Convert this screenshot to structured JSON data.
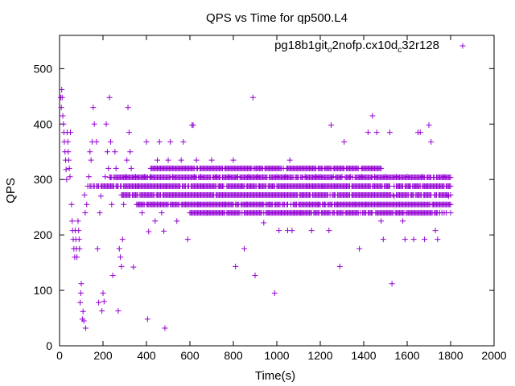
{
  "chart_data": {
    "type": "scatter",
    "title": "QPS vs Time for qp500.L4",
    "xlabel": "Time(s)",
    "ylabel": "QPS",
    "xlim": [
      0,
      2000
    ],
    "ylim": [
      0,
      560
    ],
    "xticks": [
      0,
      200,
      400,
      600,
      800,
      1000,
      1200,
      1400,
      1600,
      1800,
      2000
    ],
    "yticks": [
      0,
      100,
      200,
      300,
      400,
      500
    ],
    "grid": false,
    "legend_position": "top-right",
    "marker": "+",
    "series": [
      {
        "name_main": "pg18b1git",
        "name_sub1": "o",
        "name_mid": "2nofp.cx10d",
        "name_sub2": "c",
        "name_end": "32r128",
        "color": "#9400d3",
        "seed_points": [
          [
            5,
            448
          ],
          [
            8,
            430
          ],
          [
            10,
            462
          ],
          [
            12,
            448
          ],
          [
            15,
            415
          ],
          [
            18,
            400
          ],
          [
            20,
            385
          ],
          [
            22,
            368
          ],
          [
            25,
            350
          ],
          [
            28,
            335
          ],
          [
            30,
            318
          ],
          [
            33,
            300
          ],
          [
            35,
            385
          ],
          [
            38,
            368
          ],
          [
            40,
            350
          ],
          [
            42,
            335
          ],
          [
            45,
            320
          ],
          [
            48,
            305
          ],
          [
            50,
            385
          ],
          [
            55,
            255
          ],
          [
            58,
            225
          ],
          [
            60,
            208
          ],
          [
            63,
            192
          ],
          [
            66,
            175
          ],
          [
            70,
            160
          ],
          [
            72,
            208
          ],
          [
            75,
            192
          ],
          [
            78,
            175
          ],
          [
            80,
            160
          ],
          [
            85,
            225
          ],
          [
            88,
            208
          ],
          [
            90,
            192
          ],
          [
            92,
            175
          ],
          [
            95,
            78
          ],
          [
            98,
            95
          ],
          [
            100,
            112
          ],
          [
            105,
            48
          ],
          [
            108,
            62
          ],
          [
            112,
            45
          ],
          [
            115,
            272
          ],
          [
            118,
            240
          ],
          [
            120,
            32
          ],
          [
            125,
            255
          ],
          [
            130,
            288
          ],
          [
            135,
            305
          ],
          [
            140,
            350
          ],
          [
            145,
            335
          ],
          [
            150,
            368
          ],
          [
            155,
            430
          ],
          [
            160,
            400
          ],
          [
            170,
            368
          ],
          [
            175,
            175
          ],
          [
            180,
            78
          ],
          [
            185,
            240
          ],
          [
            190,
            270
          ],
          [
            195,
            63
          ],
          [
            200,
            95
          ],
          [
            205,
            80
          ],
          [
            210,
            305
          ],
          [
            215,
            400
          ],
          [
            220,
            350
          ],
          [
            225,
            320
          ],
          [
            230,
            448
          ],
          [
            235,
            368
          ],
          [
            240,
            255
          ],
          [
            245,
            127
          ],
          [
            250,
            288
          ],
          [
            255,
            350
          ],
          [
            260,
            320
          ],
          [
            265,
            288
          ],
          [
            270,
            63
          ],
          [
            275,
            175
          ],
          [
            280,
            160
          ],
          [
            285,
            143
          ],
          [
            290,
            192
          ],
          [
            295,
            255
          ],
          [
            300,
            288
          ],
          [
            305,
            305
          ],
          [
            310,
            335
          ],
          [
            315,
            430
          ],
          [
            320,
            385
          ],
          [
            325,
            350
          ],
          [
            330,
            320
          ],
          [
            340,
            142
          ],
          [
            350,
            305
          ],
          [
            360,
            288
          ],
          [
            370,
            255
          ],
          [
            380,
            240
          ],
          [
            390,
            305
          ],
          [
            400,
            368
          ],
          [
            405,
            48
          ],
          [
            410,
            206
          ],
          [
            420,
            305
          ],
          [
            430,
            255
          ],
          [
            440,
            225
          ],
          [
            450,
            335
          ],
          [
            460,
            368
          ],
          [
            470,
            240
          ],
          [
            480,
            207
          ],
          [
            485,
            32
          ],
          [
            490,
            288
          ],
          [
            500,
            335
          ],
          [
            510,
            368
          ],
          [
            520,
            305
          ],
          [
            530,
            255
          ],
          [
            540,
            225
          ],
          [
            550,
            288
          ],
          [
            560,
            335
          ],
          [
            570,
            368
          ],
          [
            580,
            255
          ],
          [
            590,
            192
          ],
          [
            600,
            272
          ],
          [
            610,
            398
          ],
          [
            615,
            398
          ],
          [
            620,
            305
          ],
          [
            630,
            335
          ],
          [
            640,
            255
          ],
          [
            650,
            305
          ],
          [
            660,
            288
          ],
          [
            680,
            240
          ],
          [
            700,
            335
          ],
          [
            720,
            305
          ],
          [
            740,
            288
          ],
          [
            760,
            255
          ],
          [
            780,
            305
          ],
          [
            800,
            335
          ],
          [
            810,
            143
          ],
          [
            820,
            305
          ],
          [
            840,
            288
          ],
          [
            850,
            175
          ],
          [
            860,
            255
          ],
          [
            870,
            305
          ],
          [
            880,
            288
          ],
          [
            890,
            448
          ],
          [
            900,
            127
          ],
          [
            910,
            305
          ],
          [
            920,
            288
          ],
          [
            930,
            255
          ],
          [
            940,
            222
          ],
          [
            960,
            240
          ],
          [
            970,
            255
          ],
          [
            980,
            288
          ],
          [
            990,
            95
          ],
          [
            1000,
            305
          ],
          [
            1010,
            208
          ],
          [
            1020,
            240
          ],
          [
            1030,
            288
          ],
          [
            1040,
            305
          ],
          [
            1050,
            208
          ],
          [
            1060,
            335
          ],
          [
            1070,
            208
          ],
          [
            1080,
            240
          ],
          [
            1090,
            255
          ],
          [
            1100,
            288
          ],
          [
            1110,
            240
          ],
          [
            1120,
            272
          ],
          [
            1130,
            305
          ],
          [
            1140,
            288
          ],
          [
            1150,
            255
          ],
          [
            1160,
            208
          ],
          [
            1170,
            288
          ],
          [
            1180,
            305
          ],
          [
            1190,
            255
          ],
          [
            1200,
            305
          ],
          [
            1210,
            288
          ],
          [
            1220,
            255
          ],
          [
            1240,
            208
          ],
          [
            1250,
            398
          ],
          [
            1260,
            305
          ],
          [
            1270,
            288
          ],
          [
            1280,
            255
          ],
          [
            1290,
            143
          ],
          [
            1300,
            305
          ],
          [
            1310,
            368
          ],
          [
            1320,
            288
          ],
          [
            1330,
            255
          ],
          [
            1340,
            305
          ],
          [
            1350,
            288
          ],
          [
            1360,
            255
          ],
          [
            1380,
            175
          ],
          [
            1390,
            305
          ],
          [
            1400,
            288
          ],
          [
            1410,
            255
          ],
          [
            1420,
            385
          ],
          [
            1430,
            288
          ],
          [
            1440,
            415
          ],
          [
            1450,
            305
          ],
          [
            1460,
            385
          ],
          [
            1470,
            255
          ],
          [
            1480,
            225
          ],
          [
            1490,
            192
          ],
          [
            1500,
            305
          ],
          [
            1510,
            288
          ],
          [
            1520,
            385
          ],
          [
            1530,
            112
          ],
          [
            1540,
            270
          ],
          [
            1550,
            305
          ],
          [
            1560,
            288
          ],
          [
            1570,
            255
          ],
          [
            1580,
            225
          ],
          [
            1590,
            192
          ],
          [
            1600,
            305
          ],
          [
            1610,
            288
          ],
          [
            1620,
            255
          ],
          [
            1630,
            192
          ],
          [
            1640,
            288
          ],
          [
            1650,
            385
          ],
          [
            1660,
            385
          ],
          [
            1670,
            305
          ],
          [
            1680,
            192
          ],
          [
            1690,
            288
          ],
          [
            1700,
            398
          ],
          [
            1710,
            368
          ],
          [
            1720,
            255
          ],
          [
            1730,
            208
          ],
          [
            1740,
            192
          ],
          [
            1750,
            288
          ],
          [
            1760,
            255
          ],
          [
            1770,
            305
          ],
          [
            1780,
            288
          ],
          [
            1790,
            270
          ],
          [
            1800,
            240
          ]
        ],
        "dense_levels": [
          {
            "y": 304,
            "x_from": 230,
            "x_to": 1800
          },
          {
            "y": 288,
            "x_from": 140,
            "x_to": 1800
          },
          {
            "y": 272,
            "x_from": 280,
            "x_to": 1800
          },
          {
            "y": 320,
            "x_from": 420,
            "x_to": 1480
          },
          {
            "y": 255,
            "x_from": 350,
            "x_to": 1800
          },
          {
            "y": 240,
            "x_from": 600,
            "x_to": 1780
          }
        ]
      }
    ]
  }
}
